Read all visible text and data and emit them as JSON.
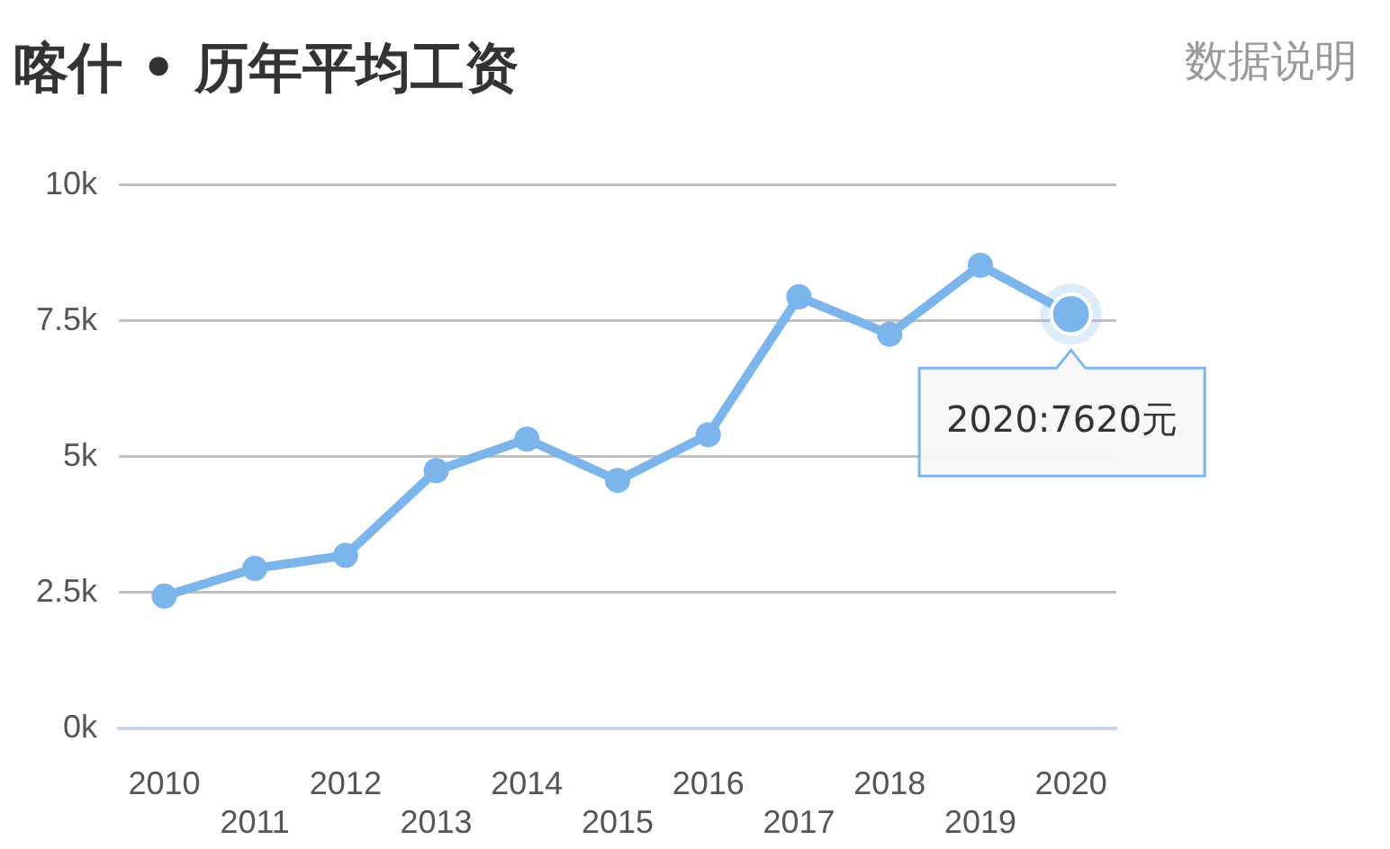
{
  "chart_data": {
    "type": "line",
    "title": "喀什 • 历年平均工资",
    "categories": [
      "2010",
      "2011",
      "2012",
      "2013",
      "2014",
      "2015",
      "2016",
      "2017",
      "2018",
      "2019",
      "2020"
    ],
    "series": [
      {
        "color": "#7cb5ec",
        "values": [
          2430,
          2940,
          3180,
          4740,
          5320,
          4560,
          5400,
          7940,
          7250,
          8520,
          7620
        ]
      }
    ],
    "ylim": [
      0,
      10000
    ],
    "yticks": [
      {
        "value": 0,
        "label": "0k"
      },
      {
        "value": 2500,
        "label": "2.5k"
      },
      {
        "value": 5000,
        "label": "5k"
      },
      {
        "value": 7500,
        "label": "7.5k"
      },
      {
        "value": 10000,
        "label": "10k"
      }
    ],
    "grid": "y",
    "legend": false,
    "marker": "circle",
    "line_style": "solid",
    "annotations": [
      "数据说明",
      {
        "text": "2020:7620元",
        "x": "2020",
        "y": 7620
      }
    ]
  }
}
